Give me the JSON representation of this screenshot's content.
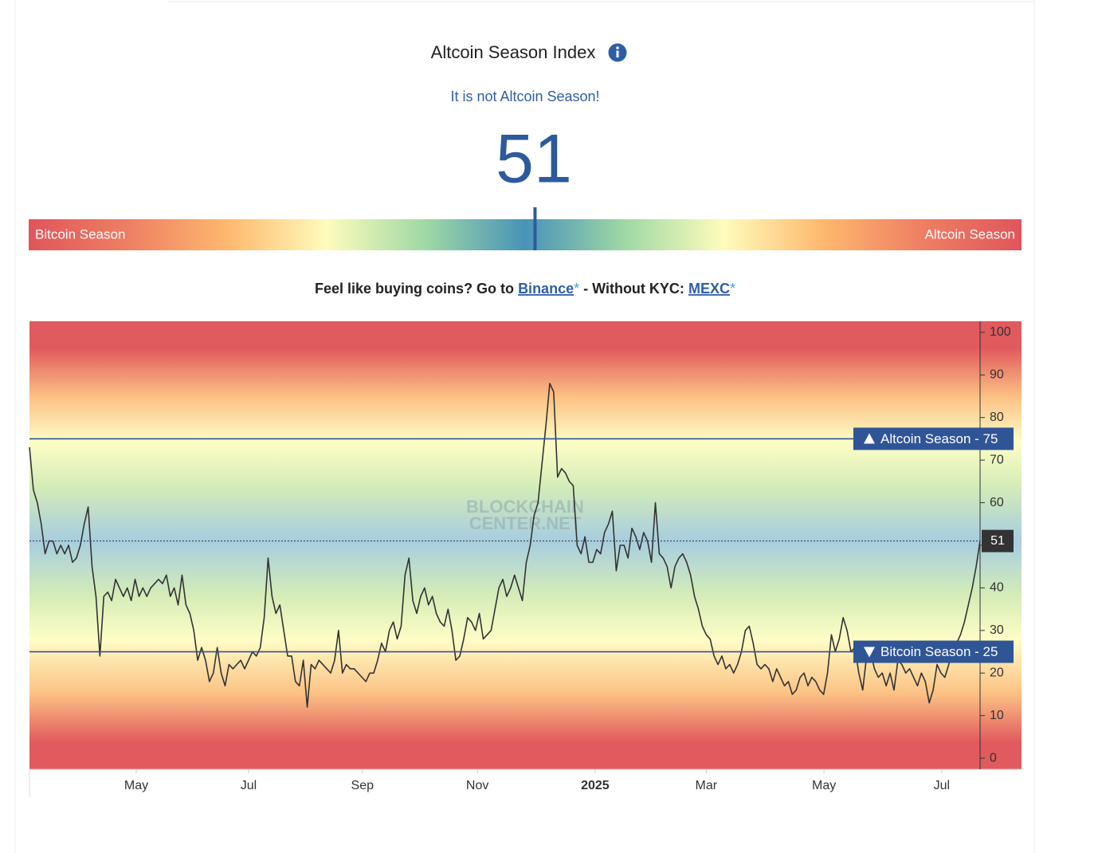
{
  "header": {
    "title": "Altcoin Season Index",
    "status": "It is not Altcoin Season!",
    "value": 51
  },
  "gauge": {
    "left_label": "Bitcoin Season",
    "right_label": "Altcoin Season",
    "range": [
      0,
      100
    ]
  },
  "promo": {
    "prefix": "Feel like buying coins? Go to",
    "link1": "Binance",
    "asterisk": "*",
    "middle": "- Without KYC:",
    "link2": "MEXC"
  },
  "chart_data": {
    "type": "line",
    "watermark": [
      "BLOCKCHAIN",
      "CENTER.NET"
    ],
    "series": [
      {
        "name": "Altcoin Season Index",
        "color": "#333333",
        "values": [
          73,
          63,
          60,
          55,
          48,
          51,
          51,
          48,
          50,
          48,
          50,
          46,
          47,
          50,
          55,
          59,
          45,
          38,
          24,
          38,
          39,
          37,
          42,
          40,
          38,
          40,
          37,
          42,
          38,
          40,
          38,
          40,
          41,
          42,
          41,
          43,
          38,
          40,
          36,
          43,
          36,
          34,
          30,
          23,
          26,
          23,
          18,
          20,
          26,
          20,
          17,
          22,
          21,
          22,
          23,
          21,
          23,
          25,
          24,
          26,
          33,
          47,
          38,
          34,
          36,
          30,
          24,
          24,
          18,
          17,
          23,
          12,
          22,
          21,
          23,
          22,
          21,
          20,
          23,
          30,
          20,
          22,
          21,
          21,
          20,
          19,
          18,
          20,
          20,
          23,
          27,
          25,
          30,
          32,
          28,
          31,
          43,
          47,
          37,
          34,
          38,
          40,
          36,
          38,
          34,
          32,
          31,
          35,
          30,
          23,
          24,
          28,
          33,
          32,
          30,
          34,
          28,
          29,
          30,
          35,
          40,
          42,
          38,
          40,
          43,
          40,
          37,
          46,
          50,
          57,
          60,
          69,
          78,
          88,
          86,
          66,
          68,
          67,
          65,
          64,
          50,
          48,
          52,
          46,
          46,
          49,
          48,
          53,
          55,
          58,
          44,
          50,
          50,
          47,
          54,
          52,
          49,
          53,
          51,
          46,
          60,
          48,
          47,
          45,
          40,
          45,
          47,
          48,
          46,
          43,
          38,
          35,
          31,
          29,
          28,
          24,
          22,
          24,
          21,
          22,
          20,
          22,
          25,
          30,
          31,
          27,
          22,
          21,
          22,
          21,
          18,
          21,
          19,
          17,
          18,
          15,
          16,
          19,
          20,
          17,
          19,
          18,
          16,
          15,
          20,
          29,
          25,
          28,
          33,
          30,
          25,
          26,
          20,
          16,
          24,
          25,
          21,
          19,
          20,
          17,
          20,
          16,
          23,
          22,
          20,
          21,
          19,
          17,
          20,
          18,
          13,
          16,
          22,
          20,
          19,
          22,
          26,
          27,
          29,
          32,
          36,
          40,
          45,
          51
        ]
      }
    ],
    "xlim": [
      0,
      243
    ],
    "xticks": [
      {
        "value": 27.3,
        "label": "May"
      },
      {
        "value": 56,
        "label": "Jul"
      },
      {
        "value": 85.1,
        "label": "Sep"
      },
      {
        "value": 114.5,
        "label": "Nov"
      },
      {
        "value": 144.6,
        "label": "2025"
      },
      {
        "value": 173,
        "label": "Mar"
      },
      {
        "value": 203.1,
        "label": "May"
      },
      {
        "value": 233.2,
        "label": "Jul"
      }
    ],
    "ylim": [
      -2.6,
      102.6
    ],
    "yticks": [
      0,
      10,
      20,
      30,
      40,
      50,
      60,
      70,
      80,
      90,
      100
    ],
    "reference_lines": [
      {
        "label": "Altcoin Season - 75",
        "value": 75,
        "direction": "up",
        "color": "#2f5597"
      },
      {
        "label": "Bitcoin Season - 25",
        "value": 25,
        "direction": "down",
        "color": "#2f5597"
      }
    ]
  }
}
